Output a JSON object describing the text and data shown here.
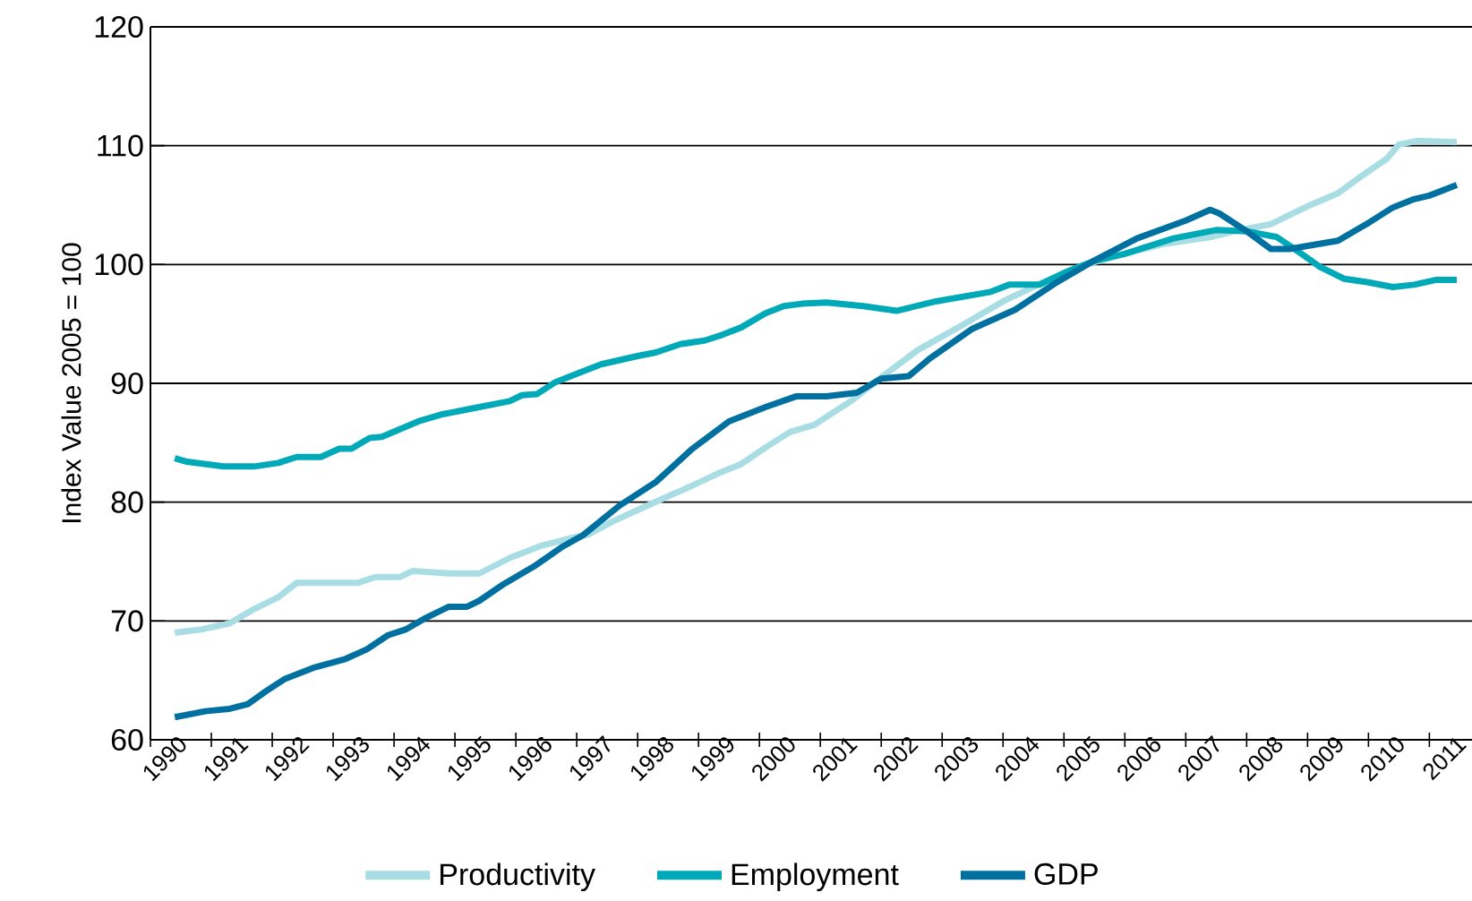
{
  "chart_data": {
    "type": "line",
    "ylabel": "Index Value 2005 = 100",
    "xlim": [
      1990,
      2011.7
    ],
    "xticks": [
      1990,
      1991,
      1992,
      1993,
      1994,
      1995,
      1996,
      1997,
      1998,
      1999,
      2000,
      2001,
      2002,
      2003,
      2004,
      2005,
      2006,
      2007,
      2008,
      2009,
      2010,
      2011
    ],
    "ylim": [
      60,
      120
    ],
    "yticks": [
      60,
      70,
      80,
      90,
      100,
      110,
      120
    ],
    "grid": "y",
    "legend": "bottom",
    "marker": "none",
    "line_style": "solid",
    "series": [
      {
        "name": "Productivity",
        "color": "#a8dde3",
        "x": [
          1990.4,
          1990.85,
          1991.3,
          1991.7,
          1992.1,
          1992.4,
          1993.4,
          1993.7,
          1994.1,
          1994.3,
          1994.9,
          1995.4,
          1995.9,
          1996.4,
          1996.85,
          1997.2,
          1997.6,
          1998.2,
          1998.9,
          1999.4,
          1999.7,
          2000.1,
          2000.5,
          2000.9,
          2001.5,
          2002.0,
          2002.6,
          2003.3,
          2004.0,
          2004.7,
          2005.35,
          2006.0,
          2006.6,
          2007.4,
          2007.8,
          2008.4,
          2009.0,
          2009.5,
          2009.9,
          2010.3,
          2010.5,
          2010.8,
          2011.45
        ],
        "values": [
          69.0,
          69.3,
          69.8,
          71.0,
          72.0,
          73.2,
          73.2,
          73.7,
          73.7,
          74.2,
          74.0,
          74.0,
          75.3,
          76.3,
          76.9,
          77.3,
          78.4,
          79.8,
          81.4,
          82.6,
          83.2,
          84.6,
          85.9,
          86.5,
          88.5,
          90.5,
          92.8,
          94.8,
          96.9,
          98.6,
          100.0,
          100.9,
          101.7,
          102.3,
          102.8,
          103.4,
          104.9,
          106.0,
          107.5,
          108.9,
          110.1,
          110.4,
          110.3
        ]
      },
      {
        "name": "Employment",
        "color": "#00a9b8",
        "x": [
          1990.4,
          1990.6,
          1991.2,
          1991.7,
          1992.1,
          1992.4,
          1992.8,
          1993.1,
          1993.3,
          1993.6,
          1993.8,
          1994.4,
          1994.8,
          1995.4,
          1995.9,
          1996.1,
          1996.35,
          1996.65,
          1996.9,
          1997.4,
          1998.0,
          1998.3,
          1998.7,
          1999.1,
          1999.4,
          1999.7,
          2000.1,
          2000.4,
          2000.7,
          2001.1,
          2001.7,
          2002.25,
          2002.9,
          2003.8,
          2004.1,
          2004.6,
          2005.05,
          2005.5,
          2006.0,
          2006.8,
          2007.5,
          2008.0,
          2008.5,
          2008.9,
          2009.2,
          2009.6,
          2010.0,
          2010.4,
          2010.75,
          2011.1,
          2011.45
        ],
        "values": [
          83.7,
          83.4,
          83.0,
          83.0,
          83.3,
          83.8,
          83.8,
          84.5,
          84.5,
          85.4,
          85.5,
          86.8,
          87.4,
          88.0,
          88.5,
          89.0,
          89.1,
          90.1,
          90.6,
          91.6,
          92.3,
          92.6,
          93.3,
          93.6,
          94.1,
          94.7,
          95.9,
          96.5,
          96.7,
          96.8,
          96.5,
          96.1,
          96.9,
          97.7,
          98.3,
          98.3,
          99.4,
          100.3,
          100.9,
          102.2,
          102.9,
          102.8,
          102.3,
          100.9,
          99.8,
          98.8,
          98.5,
          98.1,
          98.3,
          98.7,
          98.7
        ]
      },
      {
        "name": "GDP",
        "color": "#0070a0",
        "x": [
          1990.4,
          1990.9,
          1991.3,
          1991.6,
          1991.9,
          1992.2,
          1992.7,
          1993.2,
          1993.55,
          1993.9,
          1994.2,
          1994.5,
          1994.9,
          1995.2,
          1995.4,
          1995.8,
          1996.3,
          1996.75,
          1997.1,
          1997.7,
          1998.3,
          1998.9,
          1999.5,
          2000.1,
          2000.6,
          2001.1,
          2001.6,
          2002.0,
          2002.45,
          2002.8,
          2003.5,
          2004.2,
          2004.85,
          2005.45,
          2006.2,
          2007.0,
          2007.4,
          2007.55,
          2008.0,
          2008.4,
          2008.7,
          2009.5,
          2010.0,
          2010.4,
          2010.75,
          2011.0,
          2011.45
        ],
        "values": [
          61.9,
          62.4,
          62.6,
          63.0,
          64.1,
          65.1,
          66.1,
          66.8,
          67.6,
          68.8,
          69.3,
          70.2,
          71.2,
          71.2,
          71.7,
          73.1,
          74.6,
          76.2,
          77.2,
          79.7,
          81.7,
          84.5,
          86.8,
          88.0,
          88.9,
          88.9,
          89.2,
          90.4,
          90.6,
          92.1,
          94.6,
          96.2,
          98.4,
          100.2,
          102.2,
          103.7,
          104.6,
          104.3,
          102.8,
          101.3,
          101.3,
          102.0,
          103.5,
          104.8,
          105.5,
          105.8,
          106.7
        ]
      }
    ]
  }
}
